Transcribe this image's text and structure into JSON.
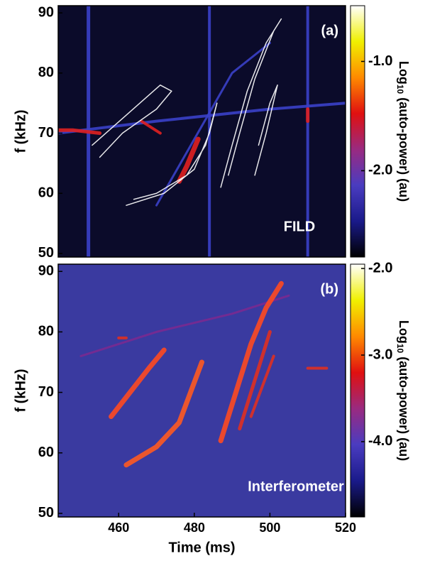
{
  "chart_data": [
    {
      "type": "spectrogram",
      "panel_label": "(a)",
      "annotation": "FILD",
      "ylabel": "f (kHz)",
      "ylim": [
        49.4,
        91.2
      ],
      "yticks": [
        50,
        60,
        70,
        80,
        90
      ],
      "xlim": [
        444,
        520
      ],
      "background": "#0b0b2a",
      "colorbar_label": {
        "prefix": "Log",
        "sub": "10",
        "suffix": " (auto-power) (au)"
      },
      "colorbar_lim": [
        -2.79,
        -0.49
      ],
      "colorbar_ticks": [
        {
          "value": -1,
          "label": "-1.0"
        },
        {
          "value": -2,
          "label": "-2.0"
        }
      ],
      "colormap": [
        "#000000",
        "#1a1a8a",
        "#4a3cc0",
        "#9a2a80",
        "#e01010",
        "#ff8a00",
        "#f0f000",
        "#ffffff"
      ],
      "series": [
        {
          "color": "#3a40c8",
          "width": 5,
          "x": [
            452,
            452
          ],
          "y": [
            49.4,
            91.2
          ]
        },
        {
          "color": "#3a40c8",
          "width": 4,
          "x": [
            484,
            484
          ],
          "y": [
            49.4,
            91.2
          ]
        },
        {
          "color": "#3a40c8",
          "width": 4,
          "x": [
            510,
            510
          ],
          "y": [
            49.4,
            91.2
          ]
        },
        {
          "color": "#3a40c8",
          "width": 4,
          "x": [
            444,
            470,
            500,
            520
          ],
          "y": [
            70,
            72,
            74,
            75
          ]
        },
        {
          "color": "#3a40c8",
          "width": 3,
          "x": [
            470,
            490,
            500
          ],
          "y": [
            58,
            80,
            85
          ]
        },
        {
          "color": "#e02020",
          "width": 7,
          "x": [
            476,
            478,
            480,
            481
          ],
          "y": [
            62,
            64.5,
            67.5,
            69
          ]
        },
        {
          "color": "#e02020",
          "width": 5,
          "x": [
            444,
            448,
            455
          ],
          "y": [
            70.5,
            70.5,
            70
          ]
        },
        {
          "color": "#e02020",
          "width": 4,
          "x": [
            466,
            471
          ],
          "y": [
            72,
            70
          ]
        },
        {
          "color": "#e02020",
          "width": 5,
          "x": [
            510,
            510
          ],
          "y": [
            72,
            74
          ]
        },
        {
          "color": "#ffffff",
          "width": 1.5,
          "x": [
            453,
            462,
            471,
            474,
            470,
            461,
            455
          ],
          "y": [
            68,
            73,
            78,
            77,
            74,
            70,
            66
          ]
        },
        {
          "color": "#ffffff",
          "width": 1.5,
          "x": [
            462,
            472,
            480,
            484,
            486,
            483,
            478,
            470,
            464
          ],
          "y": [
            58,
            60,
            64,
            70,
            75,
            68,
            63,
            60,
            59
          ]
        },
        {
          "color": "#ffffff",
          "width": 1.5,
          "x": [
            487,
            490,
            494,
            499,
            503,
            501,
            496,
            492,
            489
          ],
          "y": [
            61,
            68,
            77,
            85,
            89,
            87,
            79,
            70,
            63
          ]
        },
        {
          "color": "#ffffff",
          "width": 1.5,
          "x": [
            496,
            499,
            502,
            500,
            497
          ],
          "y": [
            63,
            70,
            78,
            75,
            68
          ]
        }
      ]
    },
    {
      "type": "spectrogram",
      "panel_label": "(b)",
      "annotation": "Interferometer",
      "ylabel": "f (kHz)",
      "ylim": [
        49.4,
        91.2
      ],
      "yticks": [
        50,
        60,
        70,
        80,
        90
      ],
      "xlim": [
        444,
        520
      ],
      "xticks": [
        460,
        480,
        500,
        520
      ],
      "xlabel": "Time (ms)",
      "background": "#3a3aa0",
      "colorbar_label": {
        "prefix": "Log",
        "sub": "10",
        "suffix": " (auto-power) (au)"
      },
      "colorbar_lim": [
        -4.87,
        -1.95
      ],
      "colorbar_ticks": [
        {
          "value": -2,
          "label": "-2.0"
        },
        {
          "value": -3,
          "label": "-3.0"
        },
        {
          "value": -4,
          "label": "-4.0"
        }
      ],
      "colormap": [
        "#000000",
        "#1a1a8a",
        "#4a3cc0",
        "#9a2a80",
        "#e01010",
        "#ff8a00",
        "#f0f000",
        "#ffffff"
      ],
      "series": [
        {
          "color": "#7a2a90",
          "width": 3,
          "x": [
            450,
            470,
            490,
            505
          ],
          "y": [
            76,
            80,
            83,
            86
          ]
        },
        {
          "color": "#ff4a20",
          "width": 7,
          "x": [
            458,
            463,
            468,
            472
          ],
          "y": [
            66,
            70,
            74,
            77
          ]
        },
        {
          "color": "#ff5a20",
          "width": 7,
          "x": [
            462,
            470,
            476,
            479,
            482
          ],
          "y": [
            58,
            61,
            65,
            70,
            75
          ]
        },
        {
          "color": "#ff4a20",
          "width": 7,
          "x": [
            487,
            491,
            495,
            499,
            503
          ],
          "y": [
            62,
            70,
            78,
            84,
            88
          ]
        },
        {
          "color": "#e03020",
          "width": 5,
          "x": [
            492,
            496,
            500
          ],
          "y": [
            64,
            72,
            80
          ]
        },
        {
          "color": "#e03020",
          "width": 4,
          "x": [
            495,
            498,
            501
          ],
          "y": [
            66,
            71,
            76
          ]
        },
        {
          "color": "#e03020",
          "width": 4,
          "x": [
            510,
            515
          ],
          "y": [
            74,
            74
          ]
        },
        {
          "color": "#e03020",
          "width": 4,
          "x": [
            460,
            462
          ],
          "y": [
            79,
            79
          ]
        }
      ]
    }
  ]
}
